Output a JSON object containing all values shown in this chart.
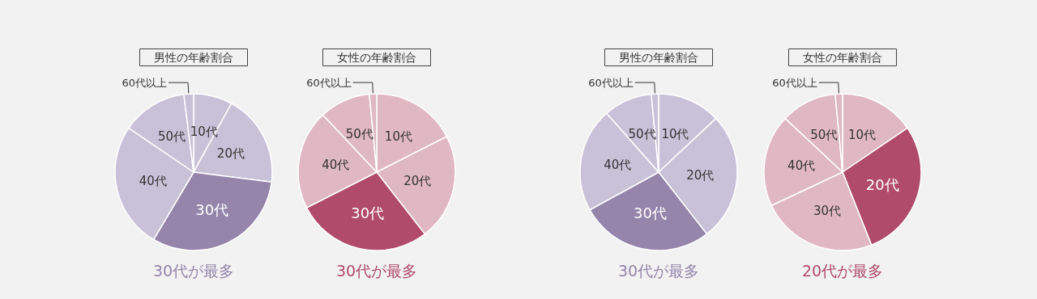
{
  "chart_data": [
    {
      "type": "pie",
      "title": "男性の年齢割合",
      "categories": [
        "10代",
        "20代",
        "30代",
        "40代",
        "50代",
        "60代以上"
      ],
      "values": [
        8,
        19,
        31.5,
        26,
        13.5,
        2
      ],
      "colors": [
        "#c9c1d8",
        "#c9c1d8",
        "#9585ab",
        "#c9c1d8",
        "#c9c1d8",
        "#c9c1d8"
      ],
      "annotations": [
        "30代が最多"
      ]
    },
    {
      "type": "pie",
      "title": "女性の年齢割合",
      "categories": [
        "10代",
        "20代",
        "30代",
        "40代",
        "50代",
        "60代以上"
      ],
      "values": [
        17.5,
        22,
        28,
        20.5,
        10.5,
        1.5
      ],
      "colors": [
        "#e0b8c4",
        "#e0b8c4",
        "#b04b6b",
        "#e0b8c4",
        "#e0b8c4",
        "#e0b8c4"
      ],
      "annotations": [
        "30代が最多"
      ]
    },
    {
      "type": "pie",
      "title": "男性の年齢割合",
      "categories": [
        "10代",
        "20代",
        "30代",
        "40代",
        "50代",
        "60代以上"
      ],
      "values": [
        13,
        26.5,
        27.5,
        21.5,
        10,
        1.5
      ],
      "colors": [
        "#c9c1d8",
        "#c9c1d8",
        "#9585ab",
        "#c9c1d8",
        "#c9c1d8",
        "#c9c1d8"
      ],
      "annotations": [
        "30代が最多"
      ]
    },
    {
      "type": "pie",
      "title": "女性の年齢割合",
      "categories": [
        "10代",
        "20代",
        "30代",
        "40代",
        "50代",
        "60代以上"
      ],
      "values": [
        15.5,
        28.5,
        24,
        19,
        11.5,
        1.5
      ],
      "colors": [
        "#e0b8c4",
        "#b04b6b",
        "#e0b8c4",
        "#e0b8c4",
        "#e0b8c4",
        "#e0b8c4"
      ],
      "annotations": [
        "20代が最多"
      ]
    }
  ]
}
